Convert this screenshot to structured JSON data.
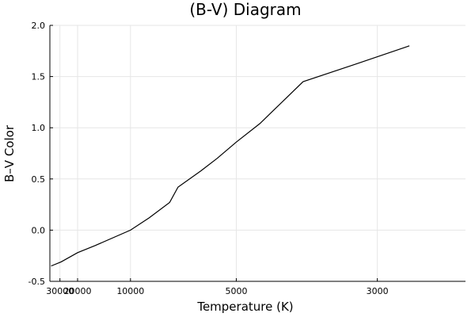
{
  "chart_data": {
    "type": "line",
    "title": "(B-V) Diagram",
    "xlabel": "Temperature (K)",
    "ylabel": "B–V Color",
    "x_scale": "reciprocal",
    "x_reversed": true,
    "xlim": [
      42000,
      2400
    ],
    "ylim": [
      -0.5,
      2.0
    ],
    "grid": true,
    "legend": "none",
    "colors": {
      "series": "#000000",
      "grid": "#e6e6e6",
      "axis": "#000000",
      "background": "#ffffff"
    },
    "x_ticks": [
      {
        "value": 30000,
        "label": "30000"
      },
      {
        "value": 20000,
        "label": "20000"
      },
      {
        "value": 10000,
        "label": "10000"
      },
      {
        "value": 5000,
        "label": "5000"
      },
      {
        "value": 3000,
        "label": "3000"
      }
    ],
    "y_ticks": [
      {
        "value": -0.5,
        "label": "-0.5"
      },
      {
        "value": 0.0,
        "label": "0.0"
      },
      {
        "value": 0.5,
        "label": "0.5"
      },
      {
        "value": 1.0,
        "label": "1.0"
      },
      {
        "value": 1.5,
        "label": "1.5"
      },
      {
        "value": 2.0,
        "label": "2.0"
      }
    ],
    "series": [
      {
        "x": [
          40000,
          29000,
          20000,
          15000,
          10000,
          8500,
          7300,
          6900,
          6000,
          5500,
          5000,
          4500,
          3800,
          3200,
          2750
        ],
        "y": [
          -0.35,
          -0.31,
          -0.22,
          -0.15,
          0.0,
          0.12,
          0.27,
          0.42,
          0.58,
          0.7,
          0.86,
          1.04,
          1.45,
          1.62,
          1.8
        ]
      }
    ]
  }
}
